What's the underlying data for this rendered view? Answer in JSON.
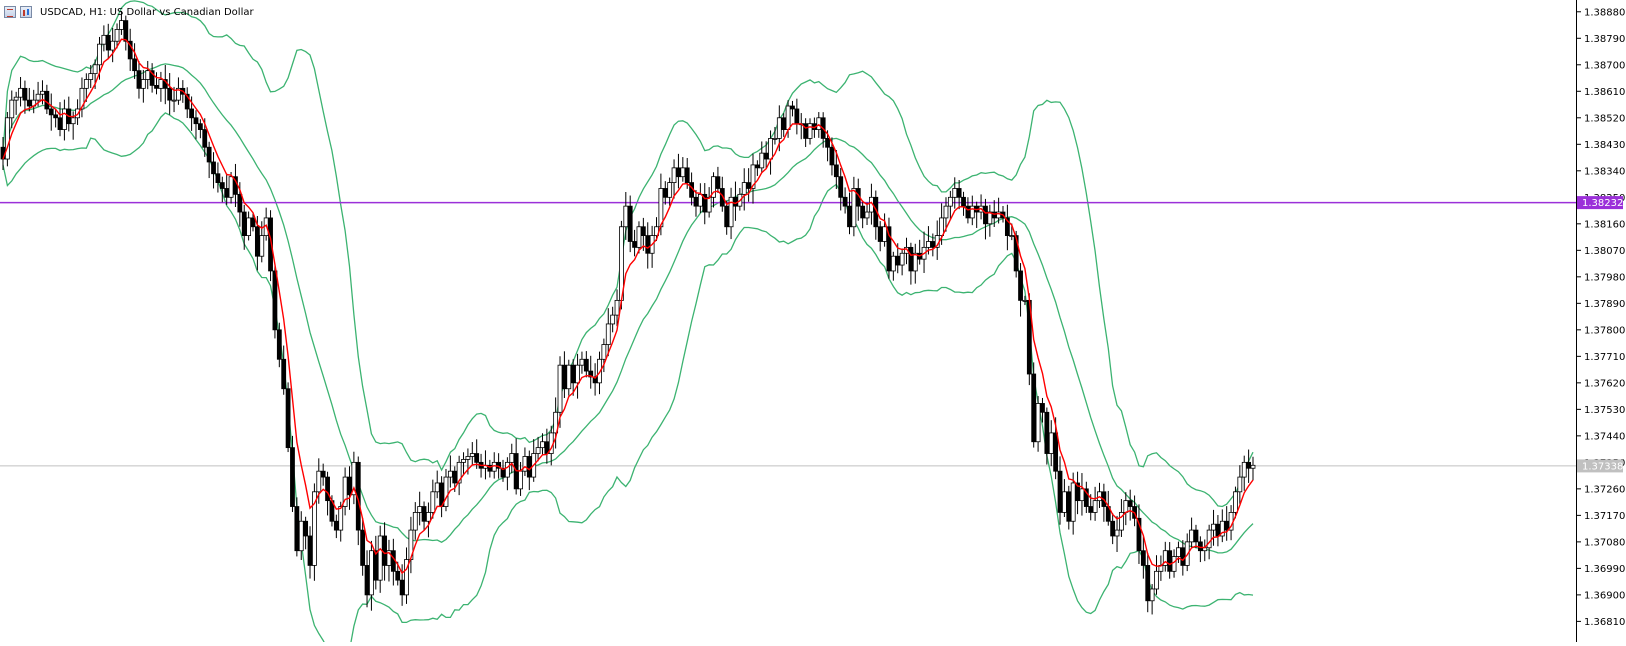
{
  "header": {
    "title": "USDCAD, H1:  US Dollar vs Canadian Dollar",
    "icons": [
      "quotes-list-icon",
      "chart-bars-icon"
    ]
  },
  "colors": {
    "bull_body": "#ffffff",
    "bear_body": "#000000",
    "wick": "#000000",
    "ma": "#ff0000",
    "bands": "#3cb371",
    "hline": "#9b30d9",
    "current_line": "#c0c0c0",
    "current_box": "#c0c0c0"
  },
  "chart_data": {
    "type": "candlestick",
    "symbol": "USDCAD",
    "timeframe": "H1",
    "y_axis": {
      "ylim": [
        1.3674,
        1.3892
      ],
      "ticks": [
        "1.38880",
        "1.38790",
        "1.38700",
        "1.38610",
        "1.38520",
        "1.38430",
        "1.38340",
        "1.38250",
        "1.38160",
        "1.38070",
        "1.37980",
        "1.37890",
        "1.37800",
        "1.37710",
        "1.37620",
        "1.37530",
        "1.37440",
        "1.37350",
        "1.37260",
        "1.37170",
        "1.37080",
        "1.36990",
        "1.36900",
        "1.36810"
      ]
    },
    "horizontal_line": {
      "price": 1.38232,
      "label": "1.38232"
    },
    "current_price": {
      "price": 1.37338,
      "label": "1.37338"
    },
    "closes": [
      1.3838,
      1.3852,
      1.3858,
      1.3859,
      1.3862,
      1.3858,
      1.3856,
      1.3858,
      1.386,
      1.3861,
      1.3855,
      1.3853,
      1.3852,
      1.3848,
      1.3855,
      1.385,
      1.3852,
      1.3855,
      1.3862,
      1.3865,
      1.3867,
      1.387,
      1.3877,
      1.388,
      1.3875,
      1.3878,
      1.3882,
      1.3885,
      1.3878,
      1.3872,
      1.3868,
      1.3862,
      1.3865,
      1.3868,
      1.3863,
      1.3862,
      1.3865,
      1.3862,
      1.3858,
      1.3858,
      1.3862,
      1.386,
      1.3855,
      1.3852,
      1.385,
      1.3848,
      1.3842,
      1.3837,
      1.3833,
      1.383,
      1.3828,
      1.3825,
      1.3832,
      1.3826,
      1.382,
      1.3812,
      1.3818,
      1.3815,
      1.3805,
      1.3812,
      1.3818,
      1.38,
      1.378,
      1.377,
      1.376,
      1.374,
      1.372,
      1.3705,
      1.3715,
      1.371,
      1.37,
      1.3725,
      1.3732,
      1.373,
      1.3722,
      1.3715,
      1.3712,
      1.372,
      1.373,
      1.3724,
      1.3735,
      1.3712,
      1.37,
      1.369,
      1.3705,
      1.3695,
      1.371,
      1.37,
      1.3705,
      1.3698,
      1.3695,
      1.369,
      1.3702,
      1.3712,
      1.3718,
      1.372,
      1.3715,
      1.3718,
      1.3725,
      1.3728,
      1.372,
      1.373,
      1.3732,
      1.3728,
      1.3735,
      1.3736,
      1.3737,
      1.3738,
      1.3735,
      1.3733,
      1.3734,
      1.3732,
      1.3735,
      1.3733,
      1.373,
      1.3735,
      1.3738,
      1.3726,
      1.3732,
      1.3737,
      1.373,
      1.3738,
      1.374,
      1.3742,
      1.3738,
      1.3745,
      1.3752,
      1.3768,
      1.376,
      1.3768,
      1.3762,
      1.3768,
      1.377,
      1.3766,
      1.3764,
      1.3762,
      1.377,
      1.3775,
      1.3782,
      1.3785,
      1.379,
      1.3815,
      1.3822,
      1.381,
      1.3808,
      1.3815,
      1.3812,
      1.3806,
      1.3812,
      1.3815,
      1.3828,
      1.3825,
      1.383,
      1.3835,
      1.3832,
      1.3835,
      1.383,
      1.3825,
      1.3822,
      1.3826,
      1.382,
      1.3825,
      1.3832,
      1.3828,
      1.3822,
      1.3815,
      1.3825,
      1.3822,
      1.3826,
      1.383,
      1.3828,
      1.3836,
      1.3835,
      1.384,
      1.3838,
      1.3845,
      1.3845,
      1.3852,
      1.3848,
      1.3856,
      1.3855,
      1.385,
      1.385,
      1.3845,
      1.385,
      1.3848,
      1.3852,
      1.3845,
      1.3842,
      1.3836,
      1.3832,
      1.3825,
      1.3822,
      1.3815,
      1.3828,
      1.3822,
      1.3818,
      1.382,
      1.3825,
      1.3815,
      1.381,
      1.3815,
      1.38,
      1.3805,
      1.3802,
      1.3806,
      1.3808,
      1.38,
      1.3806,
      1.3804,
      1.3808,
      1.381,
      1.3808,
      1.3812,
      1.3818,
      1.3822,
      1.3825,
      1.3828,
      1.3825,
      1.3822,
      1.3818,
      1.3822,
      1.382,
      1.3822,
      1.3816,
      1.382,
      1.3818,
      1.382,
      1.3818,
      1.3812,
      1.3812,
      1.38,
      1.379,
      1.379,
      1.3765,
      1.3742,
      1.3755,
      1.3752,
      1.3738,
      1.3745,
      1.3732,
      1.3718,
      1.3725,
      1.3715,
      1.3728,
      1.3722,
      1.3726,
      1.372,
      1.3718,
      1.3722,
      1.3725,
      1.372,
      1.3715,
      1.371,
      1.3712,
      1.3718,
      1.3722,
      1.372,
      1.3716,
      1.3705,
      1.37,
      1.3688,
      1.3692,
      1.3698,
      1.37,
      1.3705,
      1.3698,
      1.3703,
      1.3706,
      1.37,
      1.3708,
      1.3712,
      1.3708,
      1.3705,
      1.3706,
      1.3712,
      1.3714,
      1.371,
      1.3715,
      1.3712,
      1.3718,
      1.3725,
      1.373,
      1.3735,
      1.3733,
      1.3734
    ],
    "bollinger": {
      "basis": "moving average (red)",
      "bands": "upper / lower (green)"
    }
  }
}
